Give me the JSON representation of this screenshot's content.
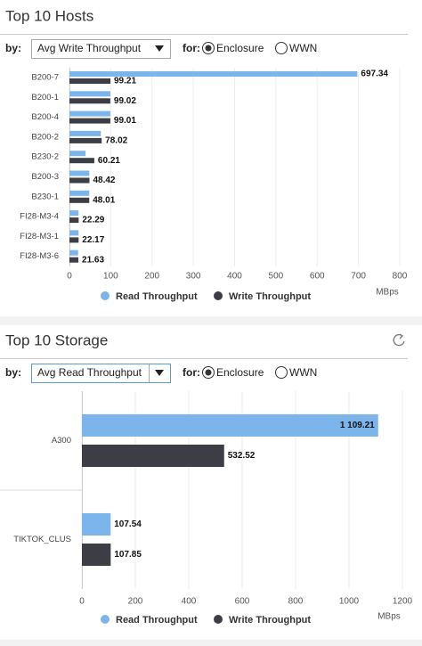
{
  "panels": [
    {
      "by": "by:",
      "select": "Avg Write Throughput",
      "for": "for:",
      "options": [
        "Enclosure",
        "WWN"
      ]
    },
    {
      "by": "by:",
      "select": "Avg Read Throughput",
      "for": "for:",
      "options": [
        "Enclosure",
        "WWN"
      ]
    }
  ],
  "chart_data": [
    {
      "type": "hbar",
      "title": "Top 10 Hosts",
      "categories": [
        "B200-7",
        "B200-1",
        "B200-4",
        "B200-2",
        "B230-2",
        "B200-3",
        "B230-1",
        "FI28-M3-4",
        "FI28-M3-1",
        "FI28-M3-6"
      ],
      "series": [
        {
          "name": "Read Throughput",
          "color": "#7cb5ec",
          "values": [
            697.34,
            99,
            99,
            76,
            39,
            48,
            48,
            22,
            22,
            21
          ],
          "value_labels": [
            "697.34",
            null,
            null,
            null,
            null,
            null,
            null,
            null,
            null,
            null
          ]
        },
        {
          "name": "Write Throughput",
          "color": "#3d3d45",
          "values": [
            99.21,
            99.02,
            99.01,
            78.02,
            60.21,
            48.42,
            48.01,
            22.29,
            22.17,
            21.63
          ],
          "value_labels": [
            "99.21",
            "99.02",
            "99.01",
            "78.02",
            "60.21",
            "48.42",
            "48.01",
            "22.29",
            "22.17",
            "21.63"
          ]
        }
      ],
      "xlim": [
        0,
        800
      ],
      "xticks": [
        0,
        100,
        200,
        300,
        400,
        500,
        600,
        700,
        800
      ],
      "xlabel": "MBps",
      "grid": true
    },
    {
      "type": "hbar",
      "title": "Top 10 Storage",
      "categories": [
        "A300",
        "TIKTOK_CLUS"
      ],
      "series": [
        {
          "name": "Read Throughput",
          "color": "#7cb5ec",
          "values": [
            1109.21,
            107.54
          ],
          "value_labels": [
            "1 109.21",
            "107.54"
          ]
        },
        {
          "name": "Write Throughput",
          "color": "#3d3d45",
          "values": [
            532.52,
            107.85
          ],
          "value_labels": [
            "532.52",
            "107.85"
          ]
        }
      ],
      "xlim": [
        0,
        1200
      ],
      "xticks": [
        0,
        200,
        400,
        600,
        800,
        1000,
        1200
      ],
      "xlabel": "MBps",
      "grid": true
    }
  ]
}
